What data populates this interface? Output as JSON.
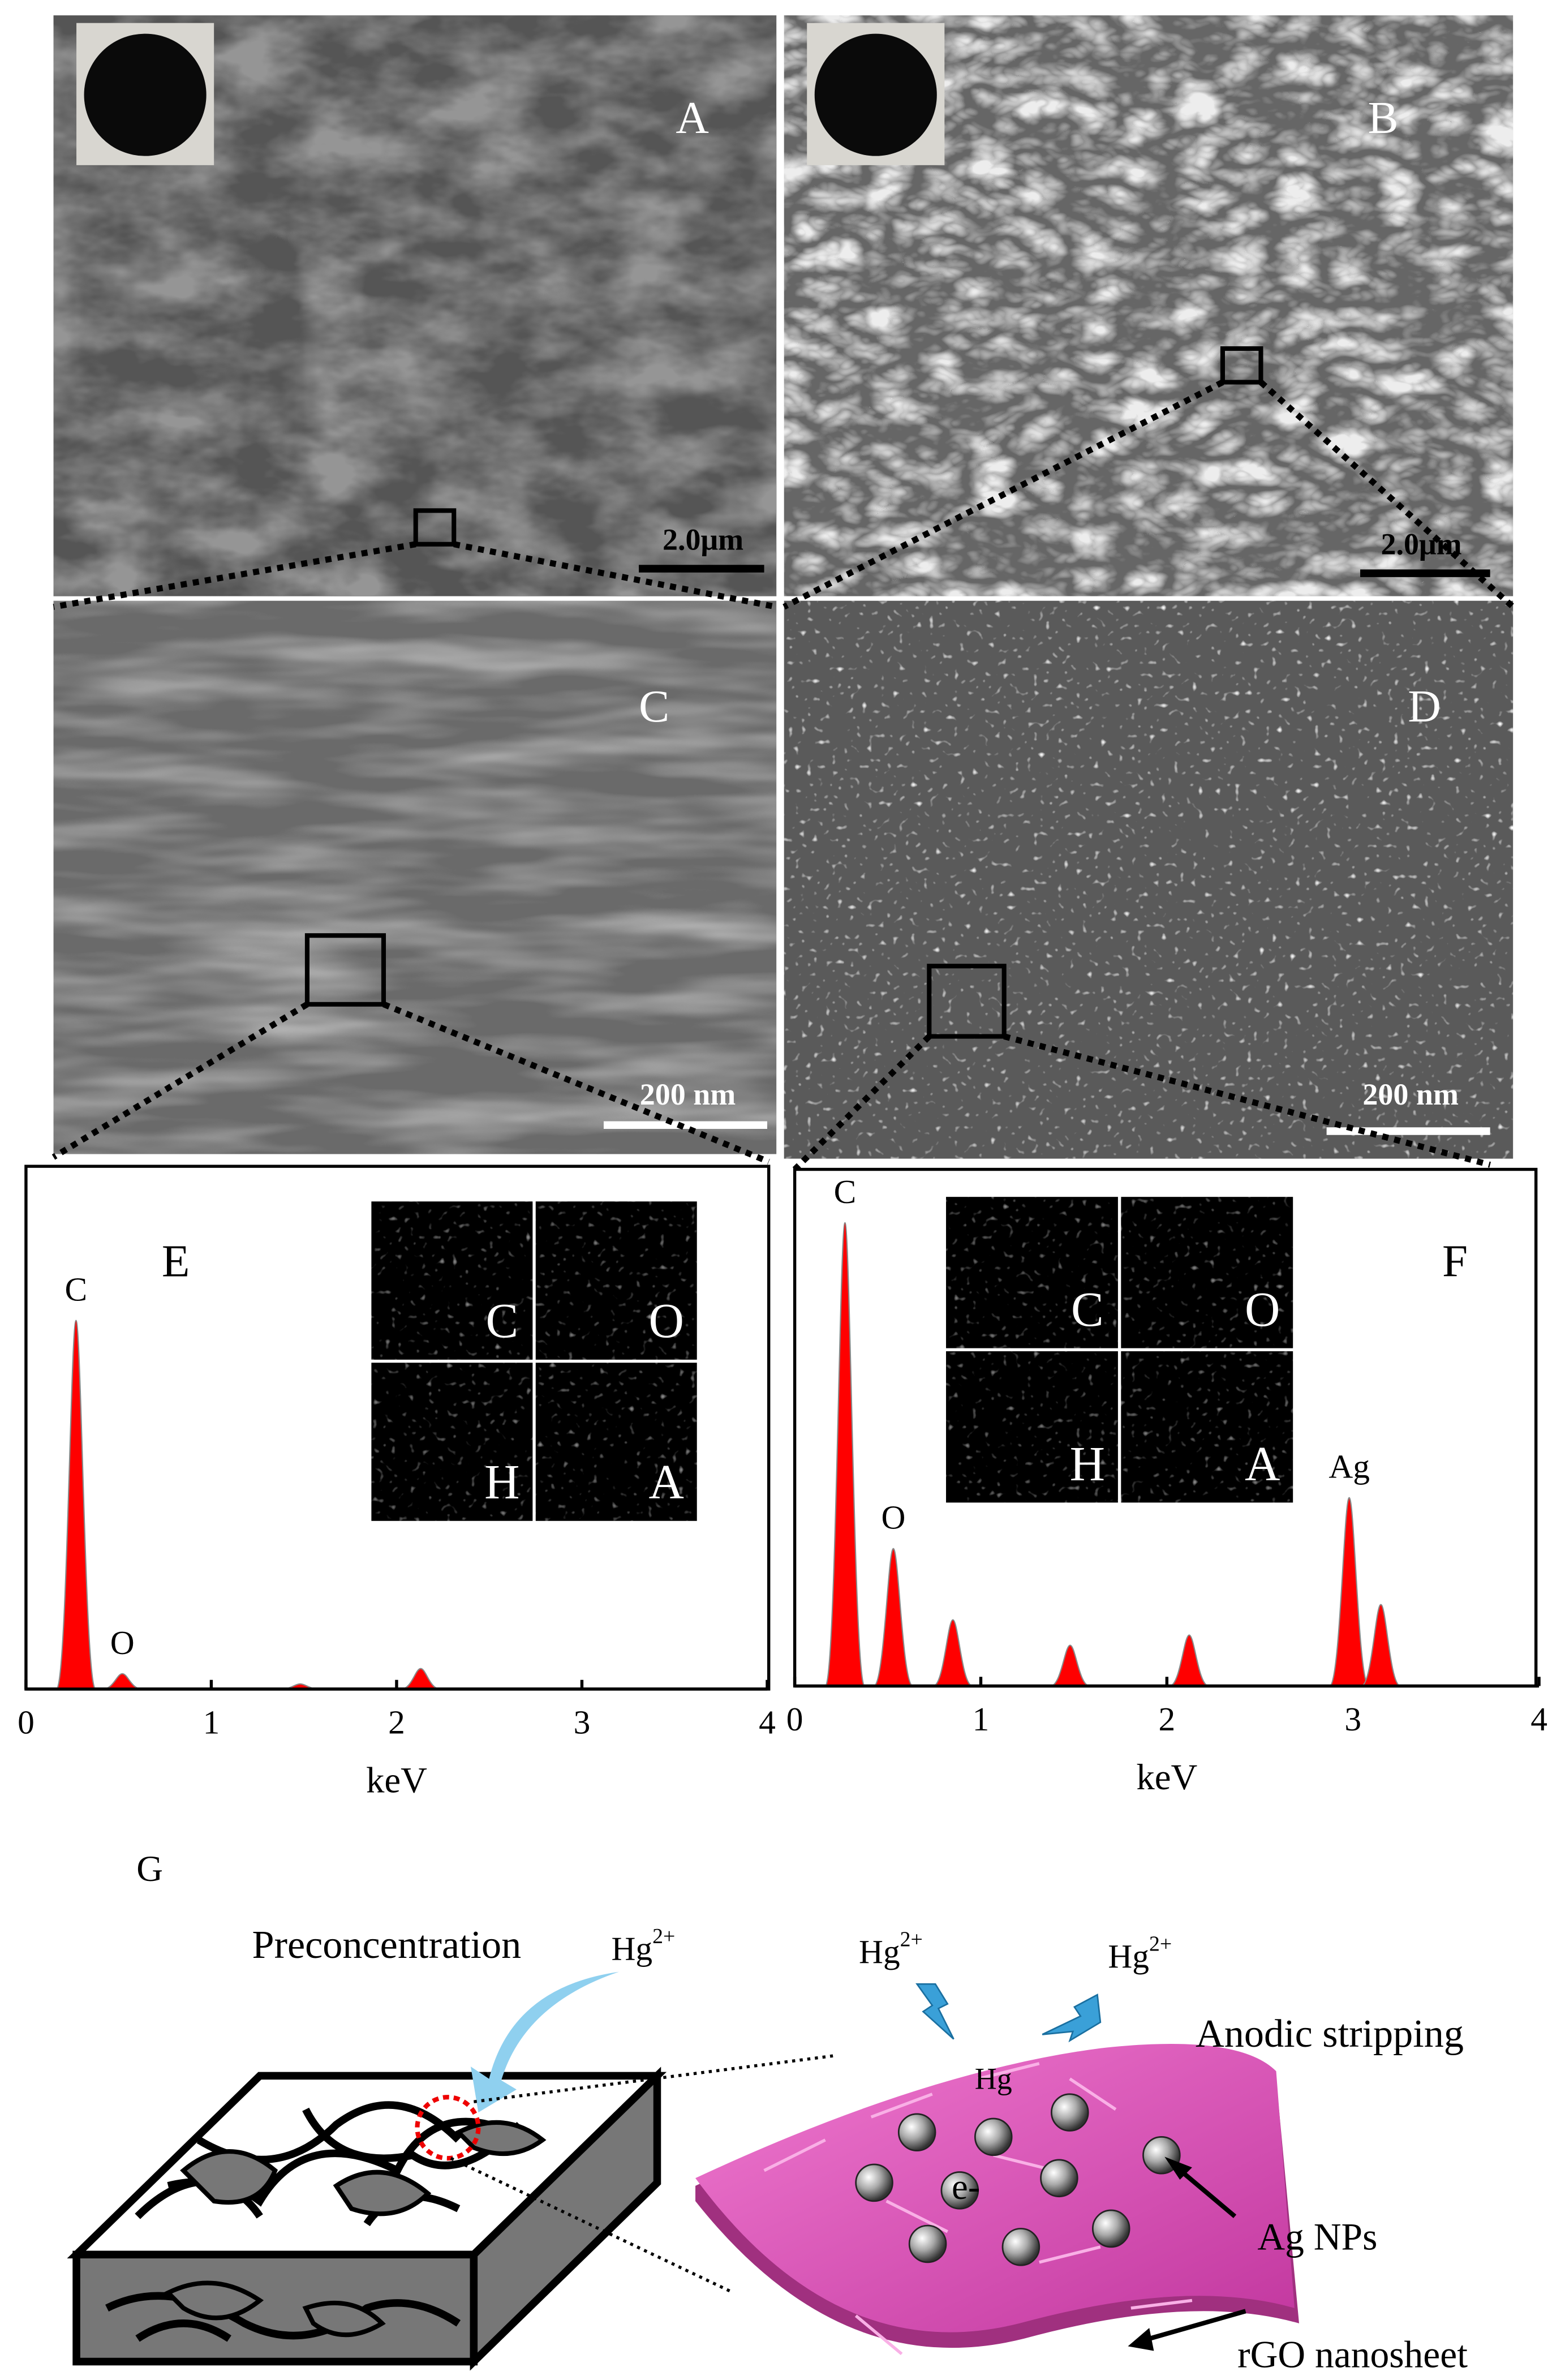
{
  "panels": {
    "A": {
      "label": "A",
      "scale_bar": "2.0μm"
    },
    "B": {
      "label": "B",
      "scale_bar": "2.0μm"
    },
    "C": {
      "label": "C",
      "scale_bar": "200 nm"
    },
    "D": {
      "label": "D",
      "scale_bar": "200 nm"
    }
  },
  "chart_data": [
    {
      "type": "area",
      "panel_label": "E",
      "x_label": "keV",
      "x": [
        0.27,
        0.52,
        1.48,
        2.13
      ],
      "values": [
        72,
        3,
        1,
        4
      ],
      "peak_labels": [
        "C",
        "O",
        null,
        null
      ],
      "map_labels": [
        "C",
        "O",
        "H",
        "A"
      ],
      "color": "#ff0000",
      "xlim": [
        0,
        4
      ],
      "xticks": [
        0,
        1,
        2,
        3,
        4
      ],
      "ylim": [
        0,
        100
      ]
    },
    {
      "type": "area",
      "panel_label": "F",
      "x_label": "keV",
      "x": [
        0.27,
        0.53,
        0.85,
        1.48,
        2.12,
        2.98,
        3.15
      ],
      "values": [
        91,
        27,
        13,
        8,
        10,
        37,
        16
      ],
      "peak_labels": [
        "C",
        "O",
        null,
        null,
        null,
        "Ag",
        null
      ],
      "map_labels": [
        "C",
        "O",
        "H",
        "A"
      ],
      "color": "#ff0000",
      "xlim": [
        0,
        4
      ],
      "xticks": [
        0,
        1,
        2,
        3,
        4
      ],
      "ylim": [
        0,
        100
      ]
    }
  ],
  "schematic": {
    "label": "G",
    "step1": "Preconcentration",
    "ion1": {
      "base": "Hg",
      "sup": "2+"
    },
    "ion2": {
      "base": "Hg",
      "sup": "2+"
    },
    "ion3": {
      "base": "Hg",
      "sup": "2+"
    },
    "step2": "Anodic stripping",
    "metal": "Hg",
    "electron": "e-",
    "particles": "Ag NPs",
    "sheet": "rGO nanosheet"
  }
}
